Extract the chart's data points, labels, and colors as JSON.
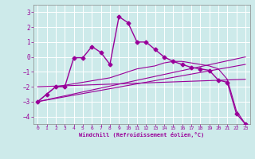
{
  "xlabel": "Windchill (Refroidissement éolien,°C)",
  "ylabel": "",
  "background_color": "#cdeaea",
  "grid_color": "#b0d8d8",
  "line_color": "#990099",
  "ylim": [
    -4.5,
    3.5
  ],
  "xlim": [
    -0.5,
    23.5
  ],
  "yticks": [
    -4,
    -3,
    -2,
    -1,
    0,
    1,
    2,
    3
  ],
  "xticks": [
    0,
    1,
    2,
    3,
    4,
    5,
    6,
    7,
    8,
    9,
    10,
    11,
    12,
    13,
    14,
    15,
    16,
    17,
    18,
    19,
    20,
    21,
    22,
    23
  ],
  "lines": [
    {
      "x": [
        0,
        1,
        2,
        3,
        4,
        5,
        6,
        7,
        8,
        9,
        10,
        11,
        12,
        13,
        14,
        15,
        16,
        17,
        18,
        19,
        20,
        21,
        22,
        23
      ],
      "y": [
        -3.0,
        -2.5,
        -2.0,
        -2.0,
        -0.05,
        -0.05,
        0.7,
        0.3,
        -0.5,
        2.7,
        2.3,
        1.0,
        1.0,
        0.5,
        0.0,
        -0.3,
        -0.5,
        -0.7,
        -0.8,
        -0.9,
        -1.55,
        -1.7,
        -3.8,
        -4.5
      ],
      "marker": "D",
      "markersize": 2.5,
      "linewidth": 1.0
    },
    {
      "x": [
        0,
        23
      ],
      "y": [
        -3.0,
        0.0
      ],
      "marker": null,
      "markersize": 0,
      "linewidth": 0.8
    },
    {
      "x": [
        0,
        23
      ],
      "y": [
        -3.0,
        -0.5
      ],
      "marker": null,
      "markersize": 0,
      "linewidth": 0.8
    },
    {
      "x": [
        0,
        23
      ],
      "y": [
        -2.0,
        -1.5
      ],
      "marker": null,
      "markersize": 0,
      "linewidth": 0.8
    },
    {
      "x": [
        0,
        1,
        2,
        3,
        4,
        5,
        6,
        7,
        8,
        9,
        10,
        11,
        12,
        13,
        14,
        15,
        16,
        17,
        18,
        19,
        20,
        21,
        22,
        23
      ],
      "y": [
        -3.0,
        -2.5,
        -2.0,
        -1.9,
        -1.8,
        -1.7,
        -1.6,
        -1.5,
        -1.4,
        -1.2,
        -1.0,
        -0.8,
        -0.7,
        -0.6,
        -0.4,
        -0.3,
        -0.3,
        -0.4,
        -0.5,
        -0.6,
        -0.8,
        -1.5,
        -3.6,
        -4.5
      ],
      "marker": null,
      "markersize": 0,
      "linewidth": 0.8
    }
  ]
}
